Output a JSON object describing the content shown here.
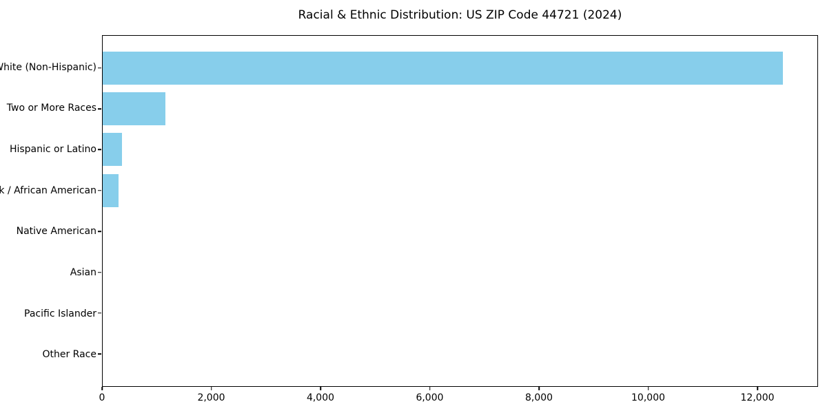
{
  "chart_data": {
    "type": "bar",
    "orientation": "horizontal",
    "title": "Racial & Ethnic Distribution: US ZIP Code 44721 (2024)",
    "xlabel": "",
    "ylabel": "",
    "categories": [
      "White (Non-Hispanic)",
      "Two or More Races",
      "Hispanic or Latino",
      "Black / African American",
      "Native American",
      "Asian",
      "Pacific Islander",
      "Other Race"
    ],
    "values": [
      12480,
      1150,
      355,
      290,
      0,
      0,
      0,
      0
    ],
    "xlim": [
      0,
      13110
    ],
    "xticks": [
      0,
      2000,
      4000,
      6000,
      8000,
      10000,
      12000
    ],
    "xtick_labels": [
      "0",
      "2,000",
      "4,000",
      "6,000",
      "8,000",
      "10,000",
      "12,000"
    ],
    "bar_color": "#87CEEB",
    "grid": false,
    "legend": null
  }
}
